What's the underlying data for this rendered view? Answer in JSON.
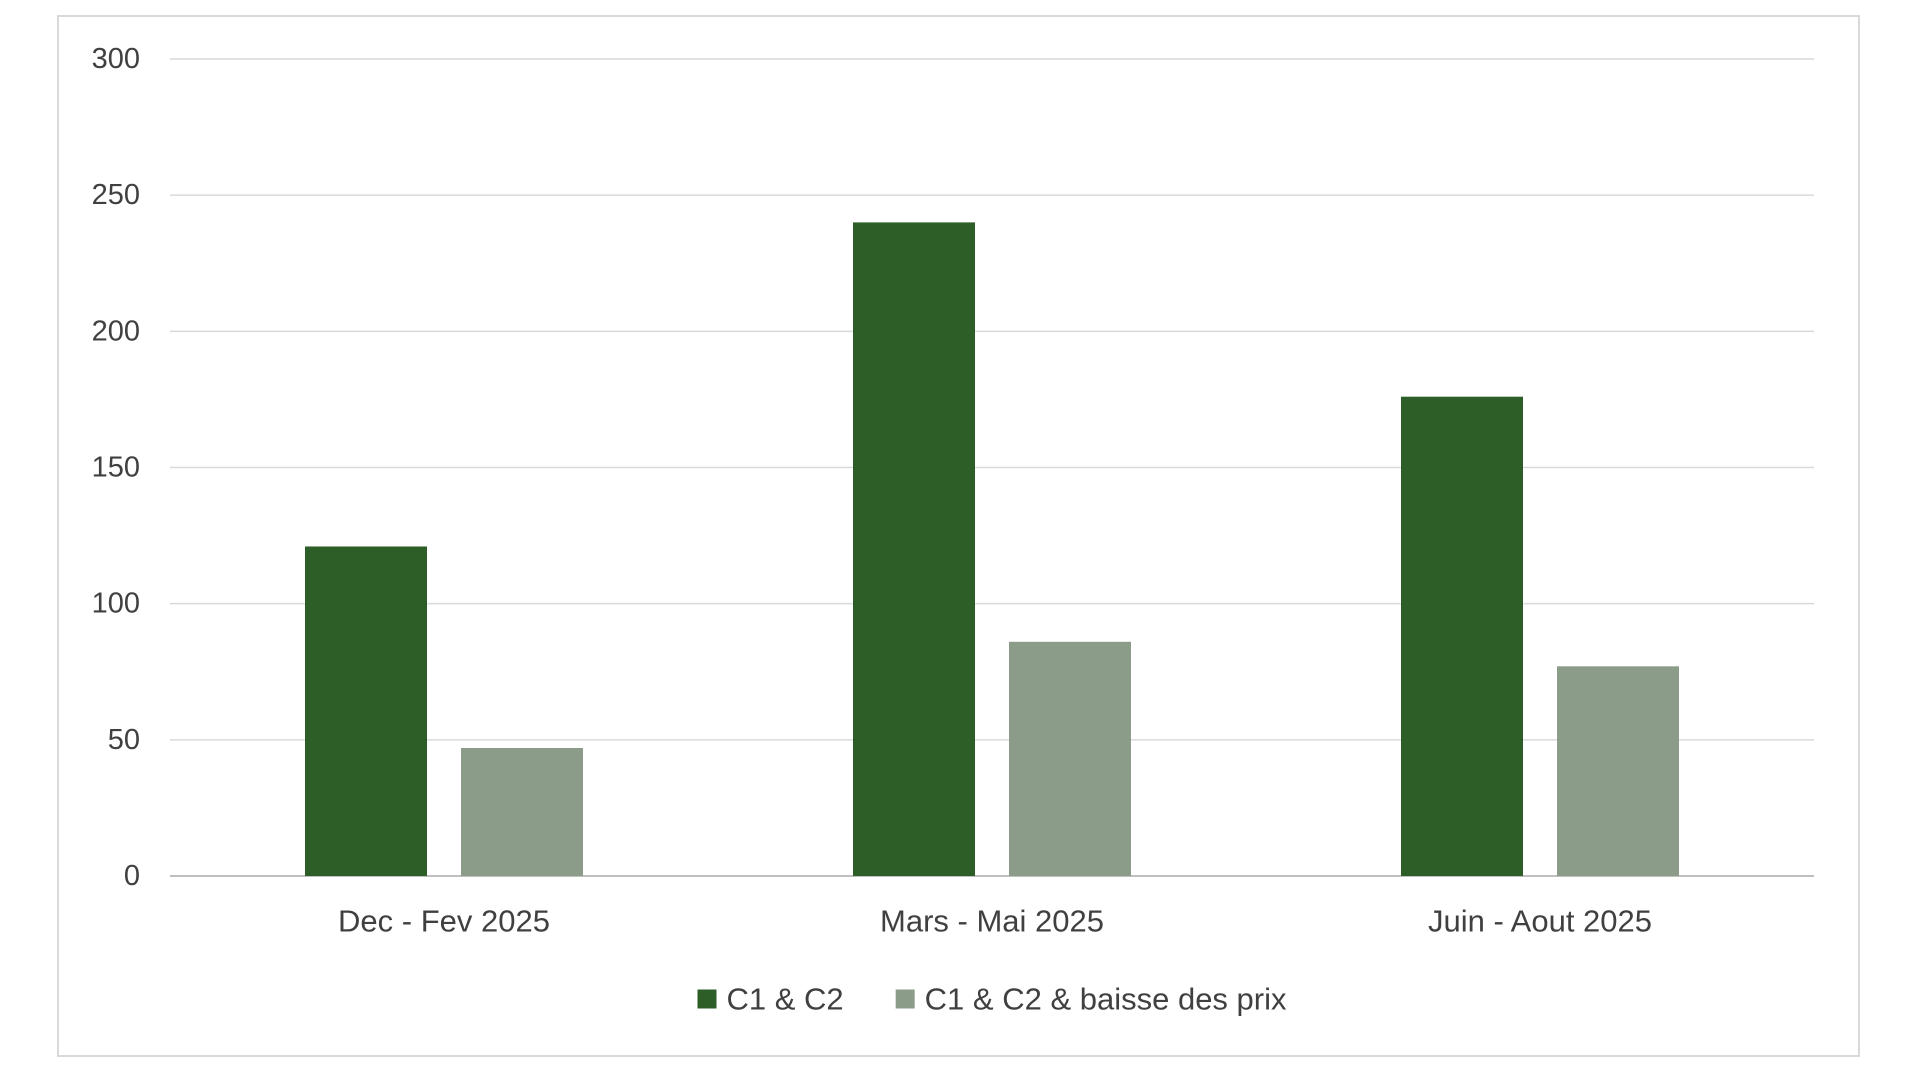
{
  "chart_data": {
    "type": "bar",
    "title": "",
    "xlabel": "",
    "ylabel": "",
    "categories": [
      "Dec - Fev 2025",
      "Mars - Mai 2025",
      "Juin - Aout 2025"
    ],
    "series": [
      {
        "name": "C1 & C2",
        "color": "#2d5e27",
        "values": [
          121,
          240,
          176
        ]
      },
      {
        "name": "C1 & C2 & baisse des prix",
        "color": "#8b9c88",
        "values": [
          47,
          86,
          77
        ]
      }
    ],
    "ylim": [
      0,
      300
    ],
    "yticks": [
      0,
      50,
      100,
      150,
      200,
      250,
      300
    ],
    "ytick_labels": [
      "0",
      "50",
      "100",
      "150",
      "200",
      "250",
      "300"
    ],
    "grid": true,
    "legend_position": "bottom"
  }
}
